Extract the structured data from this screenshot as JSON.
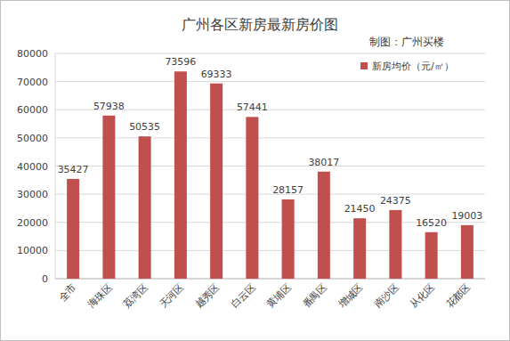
{
  "chart_data": {
    "type": "bar",
    "title": "广州各区新房最新房价图",
    "subtitle": "制图：广州买楼",
    "categories": [
      "全市",
      "海珠区",
      "荔湾区",
      "天河区",
      "越秀区",
      "白云区",
      "黄埔区",
      "番禺区",
      "增城区",
      "南沙区",
      "从化区",
      "花都区"
    ],
    "series": [
      {
        "name": "新房均价（元/㎡）",
        "color": "#c0504d",
        "values": [
          35427,
          57938,
          50535,
          73596,
          69333,
          57441,
          28157,
          38017,
          21450,
          24375,
          16520,
          19003
        ]
      }
    ],
    "ylim": [
      0,
      80000
    ],
    "yticks": [
      0,
      10000,
      20000,
      30000,
      40000,
      50000,
      60000,
      70000,
      80000
    ],
    "grid": true,
    "data_labels": true,
    "legend": "top-right"
  }
}
